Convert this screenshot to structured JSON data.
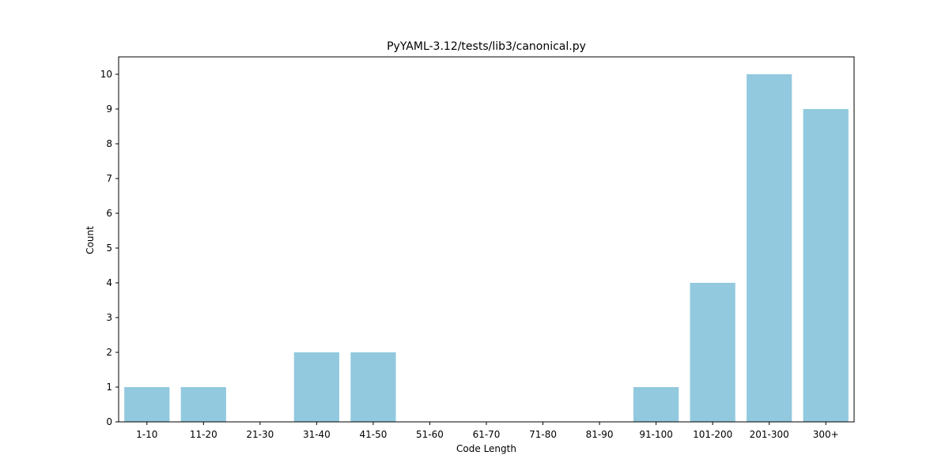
{
  "chart_data": {
    "type": "bar",
    "title": "PyYAML-3.12/tests/lib3/canonical.py",
    "xlabel": "Code Length",
    "ylabel": "Count",
    "categories": [
      "1-10",
      "11-20",
      "21-30",
      "31-40",
      "41-50",
      "51-60",
      "61-70",
      "71-80",
      "81-90",
      "91-100",
      "101-200",
      "201-300",
      "300+"
    ],
    "values": [
      1,
      1,
      0,
      2,
      2,
      0,
      0,
      0,
      0,
      1,
      4,
      10,
      9
    ],
    "yticks": [
      "0",
      "1",
      "2",
      "3",
      "4",
      "5",
      "6",
      "7",
      "8",
      "9",
      "10"
    ],
    "ylim": [
      0,
      10.5
    ],
    "grid": false,
    "bar_color": "#92c9de"
  }
}
